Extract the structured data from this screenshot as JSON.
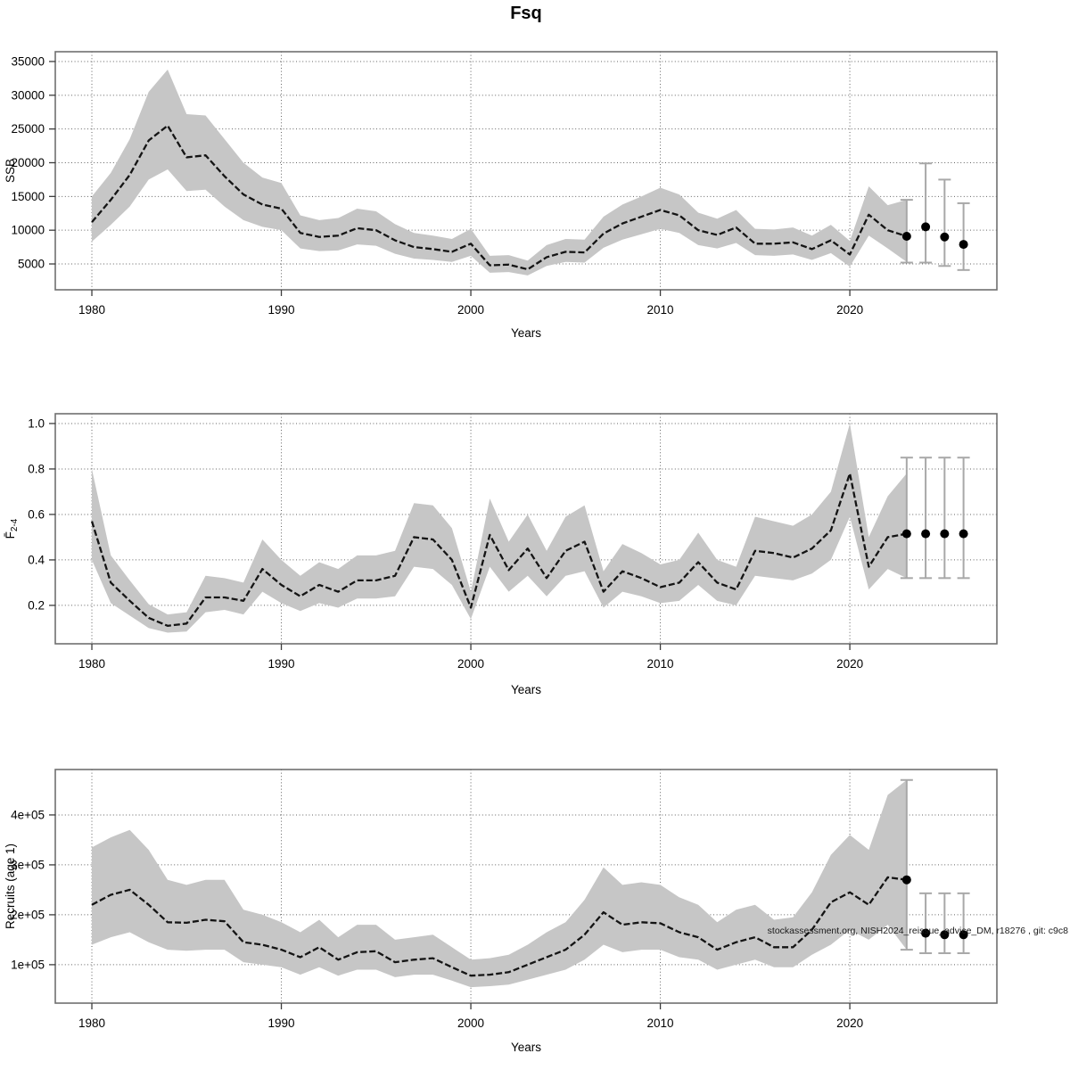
{
  "title": "Fsq",
  "watermark": "stockassessment.org, NISH2024_reissue_advice_DM, r18276 , git: c9c8",
  "colors": {
    "band": "#c6c6c6",
    "mean_line": "#141414",
    "forecast_dot": "#000000",
    "error_bar": "#a8a8a8",
    "grid": "#636363",
    "plot_border": "#6f6f6f"
  },
  "chart_data": [
    {
      "type": "area",
      "name": "ssb",
      "title": "",
      "xlabel": "Years",
      "ylabel": "SSB",
      "xlim": [
        1978.07,
        2027.76
      ],
      "ylim": [
        1170,
        36450
      ],
      "xticks": [
        1980,
        1990,
        2000,
        2010,
        2020
      ],
      "xtick_labels": [
        "1980",
        "1990",
        "2000",
        "2010",
        "2020"
      ],
      "yticks": [
        5000,
        10000,
        15000,
        20000,
        25000,
        30000,
        35000
      ],
      "ytick_labels": [
        "5000",
        "10000",
        "15000",
        "20000",
        "25000",
        "30000",
        "35000"
      ],
      "grid": true,
      "years": [
        1980,
        1981,
        1982,
        1983,
        1984,
        1985,
        1986,
        1987,
        1988,
        1989,
        1990,
        1991,
        1992,
        1993,
        1994,
        1995,
        1996,
        1997,
        1998,
        1999,
        2000,
        2001,
        2002,
        2003,
        2004,
        2005,
        2006,
        2007,
        2008,
        2009,
        2010,
        2011,
        2012,
        2013,
        2014,
        2015,
        2016,
        2017,
        2018,
        2019,
        2020,
        2021,
        2022,
        2023
      ],
      "mean": [
        11200,
        14500,
        18200,
        23300,
        25500,
        20800,
        21100,
        18000,
        15300,
        13800,
        13200,
        9600,
        9000,
        9200,
        10300,
        10000,
        8500,
        7500,
        7200,
        6800,
        8000,
        4800,
        4900,
        4200,
        6000,
        6800,
        6700,
        9500,
        11000,
        12000,
        13000,
        12200,
        10000,
        9300,
        10400,
        8000,
        8000,
        8200,
        7200,
        8500,
        6400,
        12300,
        10000,
        9100
      ],
      "lo": [
        8300,
        10800,
        13500,
        17500,
        19000,
        15800,
        16000,
        13500,
        11500,
        10500,
        10000,
        7300,
        6900,
        7000,
        7900,
        7700,
        6500,
        5800,
        5600,
        5300,
        6200,
        3700,
        3800,
        3300,
        4700,
        5300,
        5200,
        7400,
        8600,
        9400,
        10200,
        9600,
        7800,
        7300,
        8100,
        6300,
        6200,
        6400,
        5600,
        6600,
        4600,
        9200,
        7300,
        5300
      ],
      "hi": [
        15000,
        18500,
        23500,
        30500,
        33800,
        27200,
        27000,
        23500,
        20000,
        17800,
        17000,
        12200,
        11500,
        11800,
        13200,
        12800,
        10900,
        9600,
        9200,
        8700,
        10200,
        6200,
        6300,
        5500,
        7800,
        8700,
        8600,
        12000,
        13800,
        15000,
        16300,
        15300,
        12600,
        11700,
        13000,
        10200,
        10100,
        10400,
        9200,
        10800,
        8400,
        16500,
        13700,
        14500
      ],
      "forecast": {
        "years": [
          2023,
          2024,
          2025,
          2026
        ],
        "values": [
          9100,
          10500,
          9000,
          7900
        ],
        "lo": [
          5200,
          5200,
          4700,
          4100
        ],
        "hi": [
          14500,
          19900,
          17500,
          14000
        ]
      }
    },
    {
      "type": "area",
      "name": "f",
      "title": "",
      "xlabel": "Years",
      "ylabel": "F̄",
      "ylabel_sub": "2-4",
      "xlim": [
        1978.07,
        2027.76
      ],
      "ylim": [
        0.031,
        1.043
      ],
      "xticks": [
        1980,
        1990,
        2000,
        2010,
        2020
      ],
      "xtick_labels": [
        "1980",
        "1990",
        "2000",
        "2010",
        "2020"
      ],
      "yticks": [
        0.2,
        0.4,
        0.6,
        0.8,
        1.0
      ],
      "ytick_labels": [
        "0.2",
        "0.4",
        "0.6",
        "0.8",
        "1.0"
      ],
      "grid": true,
      "years": [
        1980,
        1981,
        1982,
        1983,
        1984,
        1985,
        1986,
        1987,
        1988,
        1989,
        1990,
        1991,
        1992,
        1993,
        1994,
        1995,
        1996,
        1997,
        1998,
        1999,
        2000,
        2001,
        2002,
        2003,
        2004,
        2005,
        2006,
        2007,
        2008,
        2009,
        2010,
        2011,
        2012,
        2013,
        2014,
        2015,
        2016,
        2017,
        2018,
        2019,
        2020,
        2021,
        2022,
        2023
      ],
      "mean": [
        0.57,
        0.3,
        0.22,
        0.145,
        0.11,
        0.12,
        0.235,
        0.235,
        0.22,
        0.36,
        0.29,
        0.24,
        0.29,
        0.26,
        0.31,
        0.31,
        0.33,
        0.5,
        0.49,
        0.4,
        0.19,
        0.51,
        0.355,
        0.45,
        0.32,
        0.44,
        0.48,
        0.26,
        0.35,
        0.32,
        0.28,
        0.3,
        0.39,
        0.3,
        0.27,
        0.44,
        0.43,
        0.41,
        0.45,
        0.53,
        0.78,
        0.37,
        0.5,
        0.515
      ],
      "lo": [
        0.4,
        0.21,
        0.155,
        0.1,
        0.08,
        0.085,
        0.17,
        0.18,
        0.16,
        0.26,
        0.21,
        0.175,
        0.21,
        0.19,
        0.23,
        0.23,
        0.24,
        0.37,
        0.36,
        0.29,
        0.14,
        0.37,
        0.26,
        0.33,
        0.24,
        0.33,
        0.35,
        0.19,
        0.26,
        0.24,
        0.21,
        0.22,
        0.29,
        0.22,
        0.2,
        0.33,
        0.32,
        0.31,
        0.34,
        0.4,
        0.59,
        0.27,
        0.36,
        0.32
      ],
      "hi": [
        0.8,
        0.42,
        0.31,
        0.205,
        0.16,
        0.17,
        0.33,
        0.32,
        0.3,
        0.49,
        0.4,
        0.33,
        0.39,
        0.36,
        0.42,
        0.42,
        0.44,
        0.65,
        0.64,
        0.54,
        0.26,
        0.67,
        0.48,
        0.6,
        0.44,
        0.59,
        0.64,
        0.35,
        0.47,
        0.43,
        0.38,
        0.4,
        0.52,
        0.4,
        0.37,
        0.59,
        0.57,
        0.55,
        0.6,
        0.7,
        1.0,
        0.5,
        0.68,
        0.78
      ],
      "forecast": {
        "years": [
          2023,
          2024,
          2025,
          2026
        ],
        "values": [
          0.515,
          0.515,
          0.515,
          0.515
        ],
        "lo": [
          0.32,
          0.32,
          0.32,
          0.32
        ],
        "hi": [
          0.85,
          0.85,
          0.85,
          0.85
        ]
      }
    },
    {
      "type": "area",
      "name": "recruits",
      "title": "",
      "xlabel": "Years",
      "ylabel": "Recruits (age 1)",
      "xlim": [
        1978.07,
        2027.76
      ],
      "ylim": [
        23000,
        491000
      ],
      "xticks": [
        1980,
        1990,
        2000,
        2010,
        2020
      ],
      "xtick_labels": [
        "1980",
        "1990",
        "2000",
        "2010",
        "2020"
      ],
      "yticks": [
        100000,
        200000,
        300000,
        400000
      ],
      "ytick_labels": [
        "1e+05",
        "2e+05",
        "3e+05",
        "4e+05"
      ],
      "grid": true,
      "years": [
        1980,
        1981,
        1982,
        1983,
        1984,
        1985,
        1986,
        1987,
        1988,
        1989,
        1990,
        1991,
        1992,
        1993,
        1994,
        1995,
        1996,
        1997,
        1998,
        1999,
        2000,
        2001,
        2002,
        2003,
        2004,
        2005,
        2006,
        2007,
        2008,
        2009,
        2010,
        2011,
        2012,
        2013,
        2014,
        2015,
        2016,
        2017,
        2018,
        2019,
        2020,
        2021,
        2022,
        2023
      ],
      "mean": [
        220000,
        240000,
        250000,
        220000,
        185000,
        184000,
        190000,
        187000,
        145000,
        140000,
        130000,
        115000,
        135000,
        110000,
        125000,
        127000,
        105000,
        110000,
        113000,
        95000,
        78000,
        80000,
        85000,
        100000,
        115000,
        130000,
        160000,
        205000,
        180000,
        185000,
        183000,
        165000,
        155000,
        130000,
        145000,
        155000,
        135000,
        135000,
        170000,
        225000,
        245000,
        220000,
        275000,
        270000
      ],
      "lo": [
        140000,
        155000,
        165000,
        145000,
        130000,
        128000,
        130000,
        130000,
        105000,
        100000,
        95000,
        80000,
        95000,
        78000,
        90000,
        90000,
        75000,
        80000,
        80000,
        68000,
        55000,
        57000,
        60000,
        70000,
        80000,
        90000,
        110000,
        140000,
        125000,
        130000,
        130000,
        115000,
        110000,
        90000,
        100000,
        110000,
        95000,
        95000,
        120000,
        140000,
        170000,
        150000,
        180000,
        130000
      ],
      "hi": [
        335000,
        355000,
        370000,
        330000,
        270000,
        260000,
        270000,
        270000,
        210000,
        200000,
        185000,
        165000,
        190000,
        155000,
        180000,
        180000,
        150000,
        155000,
        160000,
        135000,
        110000,
        113000,
        120000,
        140000,
        165000,
        185000,
        230000,
        295000,
        260000,
        265000,
        260000,
        235000,
        220000,
        185000,
        210000,
        220000,
        190000,
        195000,
        245000,
        320000,
        360000,
        330000,
        440000,
        470000
      ],
      "forecast": {
        "years": [
          2023,
          2024,
          2025,
          2026
        ],
        "values": [
          270000,
          163000,
          160000,
          160000
        ],
        "lo": [
          130000,
          123000,
          123000,
          123000
        ],
        "hi": [
          470000,
          243000,
          243000,
          243000
        ]
      }
    }
  ]
}
